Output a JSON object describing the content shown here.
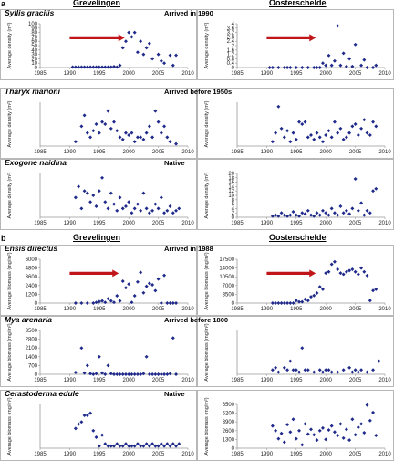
{
  "figure": {
    "panels": [
      {
        "letter": "a",
        "site_left": "Grevelingen",
        "site_right": "Oosterschelde"
      },
      {
        "letter": "b",
        "site_left": "Grevelingen",
        "site_right": "Oosterschelde"
      }
    ],
    "rows": [
      {
        "species": "Syllis gracilis",
        "status": "Arrived in 1990"
      },
      {
        "species": "Tharyx marioni",
        "status": "Arrived before 1950s"
      },
      {
        "species": "Exogone naidina",
        "status": "Native"
      },
      {
        "species": "Ensis directus",
        "status": "Arrived in 1988"
      },
      {
        "species": "Mya arenaria",
        "status": "Arrived before 1800"
      },
      {
        "species": "Cerastoderma edule",
        "status": "Native"
      }
    ]
  },
  "chart_data": [
    {
      "type": "scatter",
      "panel": "a",
      "site": "Grevelingen",
      "species": "Syllis gracilis",
      "ylabel": "Average density (m²)",
      "xlim": [
        1985,
        2010
      ],
      "ylim": [
        0,
        100
      ],
      "xticks": [
        1985,
        1990,
        1995,
        2000,
        2005,
        2010
      ],
      "yticks": [
        0,
        10,
        20,
        30,
        40,
        50,
        60,
        70,
        80,
        90,
        100
      ],
      "arrow": {
        "from_year": 1990,
        "to_year": 1999
      },
      "x": [
        1990.5,
        1991,
        1991.5,
        1992,
        1992.5,
        1993,
        1993.5,
        1994,
        1994.5,
        1995,
        1995.5,
        1996,
        1996.5,
        1997,
        1997.5,
        1998,
        1998.5,
        1999,
        1999.5,
        2000,
        2000.5,
        2001,
        2001.5,
        2002,
        2002.5,
        2003,
        2003.5,
        2004,
        2005,
        2005.5,
        2006,
        2007,
        2007.5,
        2008
      ],
      "y": [
        1,
        1,
        1,
        1,
        1,
        1,
        1,
        1,
        1,
        1,
        1,
        1,
        1,
        1,
        2,
        1,
        5,
        45,
        60,
        80,
        70,
        80,
        35,
        60,
        30,
        45,
        55,
        20,
        30,
        15,
        10,
        28,
        5,
        28
      ]
    },
    {
      "type": "scatter",
      "panel": "a",
      "site": "Oosterschelde",
      "species": "Syllis gracilis",
      "ylabel": "Average density (m²)",
      "xlim": [
        1985,
        2010
      ],
      "ylim": [
        0,
        4
      ],
      "xticks": [
        1985,
        1990,
        1995,
        2000,
        2005,
        2010
      ],
      "yticks": [
        0,
        0.4,
        0.8,
        1.2,
        1.6,
        2,
        2.4,
        2.8,
        3.2,
        3.6,
        4
      ],
      "arrow": {
        "from_year": 1990,
        "to_year": 1998
      },
      "x": [
        1990.5,
        1991,
        1992,
        1993,
        1993.5,
        1994,
        1995,
        1996,
        1997,
        1998,
        1998.5,
        1999,
        1999.5,
        2000,
        2000.5,
        2001,
        2001.5,
        2002,
        2002.5,
        2003,
        2003.5,
        2004,
        2004.5,
        2005,
        2006,
        2006.5,
        2007,
        2008,
        2008.5
      ],
      "y": [
        0,
        0,
        0,
        0,
        0,
        0,
        0,
        0,
        0,
        0,
        0,
        0,
        0.4,
        0.2,
        1.1,
        0.2,
        0.6,
        3.8,
        0.2,
        1.3,
        0.1,
        0.8,
        0.1,
        2.1,
        0.2,
        0.7,
        0,
        0,
        0.2
      ]
    },
    {
      "type": "scatter",
      "panel": "a",
      "site": "Grevelingen",
      "species": "Tharyx marioni",
      "ylabel": "Average density (m²)",
      "xlim": [
        1985,
        2010
      ],
      "xticks": [
        1985,
        1990,
        1995,
        2000,
        2005,
        2010
      ],
      "x": [
        1991,
        1992,
        1992.5,
        1993,
        1993.5,
        1994,
        1994.5,
        1995,
        1995.5,
        1996,
        1996.5,
        1997,
        1997.5,
        1998,
        1998.5,
        1999,
        1999.5,
        2000,
        2000.5,
        2001,
        2001.5,
        2002,
        2002.5,
        2003,
        2003.5,
        2004,
        2004.5,
        2005,
        2005.5,
        2006,
        2006.5,
        2007,
        2008
      ],
      "y": [
        0.1,
        0.45,
        0.7,
        0.3,
        0.2,
        0.35,
        0.5,
        0.3,
        0.55,
        0.5,
        0.8,
        0.4,
        0.55,
        0.35,
        0.2,
        0.15,
        0.3,
        0.25,
        0.3,
        0.1,
        0.2,
        0.2,
        0.15,
        0.3,
        0.45,
        0.2,
        0.8,
        0.55,
        0.3,
        0.45,
        0.2,
        0.1,
        0.05
      ]
    },
    {
      "type": "scatter",
      "panel": "a",
      "site": "Oosterschelde",
      "species": "Tharyx marioni",
      "ylabel": "Average density (m²)",
      "xlim": [
        1985,
        2010
      ],
      "xticks": [
        1985,
        1990,
        1995,
        2000,
        2005,
        2010
      ],
      "x": [
        1991,
        1991.5,
        1992,
        1992.5,
        1993,
        1993.5,
        1994,
        1994.5,
        1995,
        1995.5,
        1996,
        1996.5,
        1997,
        1997.5,
        1998,
        1998.5,
        1999,
        1999.5,
        2000,
        2000.5,
        2001,
        2001.5,
        2002,
        2002.5,
        2003,
        2003.5,
        2004,
        2004.5,
        2005,
        2005.5,
        2006,
        2006.5,
        2007,
        2007.5,
        2008,
        2008.5
      ],
      "y": [
        0.1,
        0.3,
        0.9,
        0.4,
        0.2,
        0.35,
        0.1,
        0.3,
        0.15,
        0.55,
        0.5,
        0.55,
        0.2,
        0.25,
        0.15,
        0.3,
        0.2,
        0.1,
        0.25,
        0.35,
        0.2,
        0.55,
        0.3,
        0.4,
        0.15,
        0.2,
        0.3,
        0.45,
        0.5,
        0.25,
        0.4,
        0.6,
        0.3,
        0.25,
        0.55,
        0.45
      ]
    },
    {
      "type": "scatter",
      "panel": "a",
      "site": "Grevelingen",
      "species": "Exogone naidina",
      "ylabel": "Average density (m²)",
      "xlim": [
        1985,
        2010
      ],
      "xticks": [
        1985,
        1990,
        1995,
        2000,
        2005,
        2010
      ],
      "x": [
        1991,
        1991.5,
        1992,
        1992.5,
        1993,
        1993.5,
        1994,
        1994.5,
        1995,
        1995.5,
        1996,
        1996.5,
        1997,
        1997.5,
        1998,
        1998.5,
        1999,
        1999.5,
        2000,
        2000.5,
        2001,
        2001.5,
        2002,
        2002.5,
        2003,
        2003.5,
        2004,
        2004.5,
        2005,
        2005.5,
        2006,
        2006.5,
        2007,
        2007.5,
        2008,
        2008.5
      ],
      "y": [
        0.45,
        0.7,
        0.2,
        0.6,
        0.55,
        0.35,
        0.5,
        0.25,
        0.6,
        0.9,
        0.35,
        0.2,
        0.55,
        0.3,
        0.15,
        0.45,
        0.2,
        0.25,
        0.35,
        0.1,
        0.2,
        0.3,
        0.15,
        0.55,
        0.2,
        0.1,
        0.15,
        0.3,
        0.2,
        0.45,
        0.1,
        0.15,
        0.25,
        0.1,
        0.15,
        0.2
      ]
    },
    {
      "type": "scatter",
      "panel": "a",
      "site": "Oosterschelde",
      "species": "Exogone naidina",
      "ylabel": "Average density (m²)",
      "xlim": [
        1985,
        2010
      ],
      "ylim": [
        0,
        20
      ],
      "xticks": [
        1985,
        1990,
        1995,
        2000,
        2005,
        2010
      ],
      "yticks": [
        0,
        2,
        4,
        6,
        8,
        10,
        12,
        14,
        16,
        18,
        20
      ],
      "x": [
        1991,
        1991.5,
        1992,
        1992.5,
        1993,
        1993.5,
        1994,
        1994.5,
        1995,
        1995.5,
        1996,
        1996.5,
        1997,
        1997.5,
        1998,
        1998.5,
        1999,
        1999.5,
        2000,
        2000.5,
        2001,
        2001.5,
        2002,
        2002.5,
        2003,
        2003.5,
        2004,
        2004.5,
        2005,
        2005.5,
        2006,
        2006.5,
        2007,
        2007.5,
        2008,
        2008.5
      ],
      "y": [
        0.5,
        1,
        0.5,
        2,
        1,
        0.5,
        1,
        2.5,
        1,
        0.5,
        2,
        1.5,
        3,
        1,
        0.5,
        2,
        1,
        3,
        2,
        1,
        4,
        2,
        1,
        5,
        2,
        3,
        1.5,
        4,
        17.5,
        3,
        6.5,
        1,
        3,
        2,
        12,
        13
      ]
    },
    {
      "type": "scatter",
      "panel": "b",
      "site": "Grevelingen",
      "species": "Ensis directus",
      "ylabel": "Average biomass (mg/m²)",
      "xlim": [
        1985,
        2010
      ],
      "ylim": [
        0,
        6000
      ],
      "xticks": [
        1985,
        1990,
        1995,
        2000,
        2005,
        2010
      ],
      "yticks": [
        0,
        1200,
        2400,
        3600,
        4800,
        6000
      ],
      "arrow": {
        "from_year": 1990,
        "to_year": 1998
      },
      "x": [
        1991,
        1992,
        1993,
        1994,
        1994.5,
        1995,
        1995.5,
        1996,
        1996.5,
        1997,
        1997.5,
        1998,
        1998.5,
        1999,
        1999.5,
        2000,
        2000.5,
        2001,
        2001.5,
        2002,
        2002.5,
        2003,
        2003.5,
        2004,
        2004.5,
        2005,
        2005.5,
        2006,
        2006.5,
        2007,
        2007.5,
        2008
      ],
      "y": [
        0,
        0,
        0,
        0,
        100,
        200,
        300,
        100,
        600,
        300,
        100,
        1000,
        300,
        3000,
        2100,
        2600,
        100,
        1000,
        2900,
        4200,
        1400,
        2300,
        2700,
        2500,
        1700,
        3300,
        0,
        3800,
        0,
        0,
        0,
        0
      ]
    },
    {
      "type": "scatter",
      "panel": "b",
      "site": "Oosterschelde",
      "species": "Ensis directus",
      "ylabel": "Average biomass (mg/m²)",
      "xlim": [
        1985,
        2010
      ],
      "ylim": [
        0,
        17500
      ],
      "xticks": [
        1985,
        1990,
        1995,
        2000,
        2005,
        2010
      ],
      "yticks": [
        0,
        3500,
        7000,
        10500,
        14000,
        17500
      ],
      "arrow": {
        "from_year": 1990,
        "to_year": 1998
      },
      "x": [
        1991,
        1991.5,
        1992,
        1992.5,
        1993,
        1993.5,
        1994,
        1994.5,
        1995,
        1995.5,
        1996,
        1996.5,
        1997,
        1997.5,
        1998,
        1998.5,
        1999,
        1999.5,
        2000,
        2000.5,
        2001,
        2001.5,
        2002,
        2002.5,
        2003,
        2003.5,
        2004,
        2004.5,
        2005,
        2005.5,
        2006,
        2006.5,
        2007,
        2007.5,
        2008,
        2008.5
      ],
      "y": [
        0,
        0,
        0,
        0,
        0,
        0,
        0,
        0,
        1000,
        500,
        500,
        1500,
        1000,
        2500,
        3000,
        4000,
        6500,
        5500,
        12000,
        12500,
        15500,
        16500,
        13500,
        12000,
        11500,
        12500,
        13000,
        13500,
        12500,
        11500,
        14000,
        12500,
        11000,
        1000,
        5000,
        5500
      ]
    },
    {
      "type": "scatter",
      "panel": "b",
      "site": "Grevelingen",
      "species": "Mya arenaria",
      "ylabel": "Average biomass (mg/m²)",
      "xlim": [
        1985,
        2010
      ],
      "ylim": [
        0,
        3500
      ],
      "xticks": [
        1985,
        1990,
        1995,
        2000,
        2005,
        2010
      ],
      "yticks": [
        0,
        700,
        1400,
        2100,
        2800,
        3500
      ],
      "x": [
        1991,
        1992,
        1992.5,
        1993,
        1993.5,
        1994,
        1994.5,
        1995,
        1995.5,
        1996,
        1996.5,
        1997,
        1997.5,
        1998,
        1998.5,
        1999,
        1999.5,
        2000,
        2000.5,
        2001,
        2001.5,
        2002,
        2002.5,
        2003,
        2003.5,
        2004,
        2004.5,
        2005,
        2005.5,
        2006,
        2006.5,
        2007,
        2007.5,
        2008
      ],
      "y": [
        150,
        2100,
        100,
        700,
        50,
        0,
        50,
        1400,
        100,
        0,
        700,
        50,
        0,
        0,
        0,
        0,
        0,
        0,
        0,
        0,
        0,
        0,
        50,
        1400,
        0,
        0,
        0,
        0,
        0,
        0,
        0,
        50,
        2900,
        0
      ]
    },
    {
      "type": "scatter",
      "panel": "b",
      "site": "Oosterschelde",
      "species": "Mya arenaria",
      "ylabel": "Average biomass (mg/m²)",
      "xlim": [
        1985,
        2010
      ],
      "xticks": [
        1985,
        1990,
        1995,
        2000,
        2005,
        2010
      ],
      "x": [
        1991,
        1991.5,
        1992,
        1993,
        1993.5,
        1994,
        1994.5,
        1995,
        1995.5,
        1996,
        1996.5,
        1997,
        1998,
        1999,
        1999.5,
        2000,
        2000.5,
        2001,
        2002,
        2003,
        2004,
        2004.5,
        2005,
        2005.5,
        2006,
        2007,
        2008,
        2009
      ],
      "y": [
        0.1,
        0.15,
        0.05,
        0.15,
        0.1,
        0.3,
        0.1,
        0.1,
        0.05,
        0.6,
        0.1,
        0.1,
        0.05,
        0.1,
        0.05,
        0.1,
        0.1,
        0.05,
        0.05,
        0.1,
        0.15,
        0.05,
        0.1,
        0.05,
        0.1,
        0.05,
        0.1,
        0.3
      ]
    },
    {
      "type": "scatter",
      "panel": "b",
      "site": "Grevelingen",
      "species": "Cerastoderma edule",
      "ylabel": "Average biomass (mg/m²)",
      "xlim": [
        1985,
        2010
      ],
      "xticks": [
        1985,
        1990,
        1995,
        2000,
        2005,
        2010
      ],
      "x": [
        1991,
        1991.5,
        1992,
        1992.5,
        1993,
        1993.5,
        1994,
        1994.5,
        1995,
        1995.5,
        1996,
        1996.5,
        1997,
        1997.5,
        1998,
        1998.5,
        1999,
        1999.5,
        2000,
        2000.5,
        2001,
        2001.5,
        2002,
        2002.5,
        2003,
        2003.5,
        2004,
        2004.5,
        2005,
        2005.5,
        2006,
        2006.5,
        2007,
        2007.5,
        2008,
        2008.5
      ],
      "y": [
        0.45,
        0.55,
        0.6,
        0.75,
        0.75,
        0.8,
        0.4,
        0.25,
        0.05,
        0.3,
        0.1,
        0.05,
        0.05,
        0.05,
        0.1,
        0.05,
        0.05,
        0.1,
        0.05,
        0.05,
        0.05,
        0.1,
        0.05,
        0.05,
        0.1,
        0.05,
        0.1,
        0.05,
        0.05,
        0.1,
        0.05,
        0.1,
        0.05,
        0.1,
        0.05,
        0.1
      ]
    },
    {
      "type": "scatter",
      "panel": "b",
      "site": "Oosterschelde",
      "species": "Cerastoderma edule",
      "ylabel": "Average biomass (mg/m²)",
      "xlim": [
        1985,
        2010
      ],
      "ylim": [
        0,
        6500
      ],
      "xticks": [
        1985,
        1990,
        1995,
        2000,
        2005,
        2010
      ],
      "yticks": [
        0,
        1300,
        2600,
        3900,
        5200,
        6500
      ],
      "x": [
        1991,
        1991.5,
        1992,
        1992.5,
        1993,
        1993.5,
        1994,
        1994.5,
        1995,
        1995.5,
        1996,
        1996.5,
        1997,
        1997.5,
        1998,
        1998.5,
        1999,
        1999.5,
        2000,
        2000.5,
        2001,
        2001.5,
        2002,
        2002.5,
        2003,
        2003.5,
        2004,
        2004.5,
        2005,
        2005.5,
        2006,
        2006.5,
        2007,
        2007.5,
        2008,
        2008.5
      ],
      "y": [
        3300,
        2600,
        1400,
        2200,
        900,
        3500,
        2400,
        4300,
        1400,
        2600,
        500,
        3600,
        2100,
        2800,
        2000,
        1200,
        2600,
        3000,
        1300,
        2700,
        3300,
        2400,
        1900,
        3600,
        1500,
        2800,
        1200,
        4300,
        2000,
        3100,
        3600,
        2300,
        6400,
        4100,
        5300,
        1900
      ]
    }
  ],
  "colors": {
    "marker": "#1f2a8a",
    "arrow": "#c0161a",
    "frame": "#b7b7b7",
    "axis": "#999999"
  }
}
